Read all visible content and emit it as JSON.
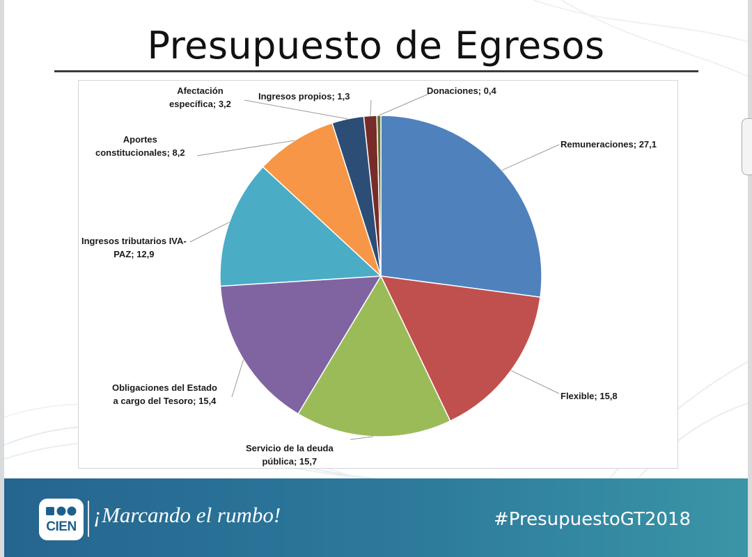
{
  "slide": {
    "title": "Presupuesto de Egresos",
    "slogan": "¡Marcando el rumbo!",
    "hashtag": "#PresupuestoGT2018",
    "logo_text": "CIEN"
  },
  "colors": {
    "accent": "#2d7a9c",
    "Remuneraciones": "#4f81bd",
    "Flexible": "#c0504d",
    "Servicio de la deuda pública": "#9bbb59",
    "Obligaciones del Estado a cargo del Tesoro": "#8064a2",
    "Ingresos tributarios IVA-PAZ": "#4bacc6",
    "Aportes constitucionales": "#f79646",
    "Afectación específica": "#2c4d75",
    "Ingresos propios": "#772c2a",
    "Donaciones": "#5f7530"
  },
  "chart_data": {
    "type": "pie",
    "title": "",
    "categories": [
      "Remuneraciones",
      "Flexible",
      "Servicio de la deuda pública",
      "Obligaciones del Estado a cargo del Tesoro",
      "Ingresos tributarios IVA-PAZ",
      "Aportes constitucionales",
      "Afectación específica",
      "Ingresos propios",
      "Donaciones"
    ],
    "values": [
      27.1,
      15.8,
      15.7,
      15.4,
      12.9,
      8.2,
      3.2,
      1.3,
      0.4
    ],
    "labels": [
      "Remuneraciones;  27,1",
      "Flexible;  15,8",
      "Servicio de la deuda\npública;  15,7",
      "Obligaciones del Estado\na cargo del Tesoro;  15,4",
      "Ingresos tributarios IVA-\nPAZ;  12,9",
      "Aportes\nconstitucionales;  8,2",
      "Afectación\nespecífica;  3,2",
      "Ingresos propios;  1,3",
      "Donaciones;  0,4"
    ],
    "legend": "none"
  }
}
